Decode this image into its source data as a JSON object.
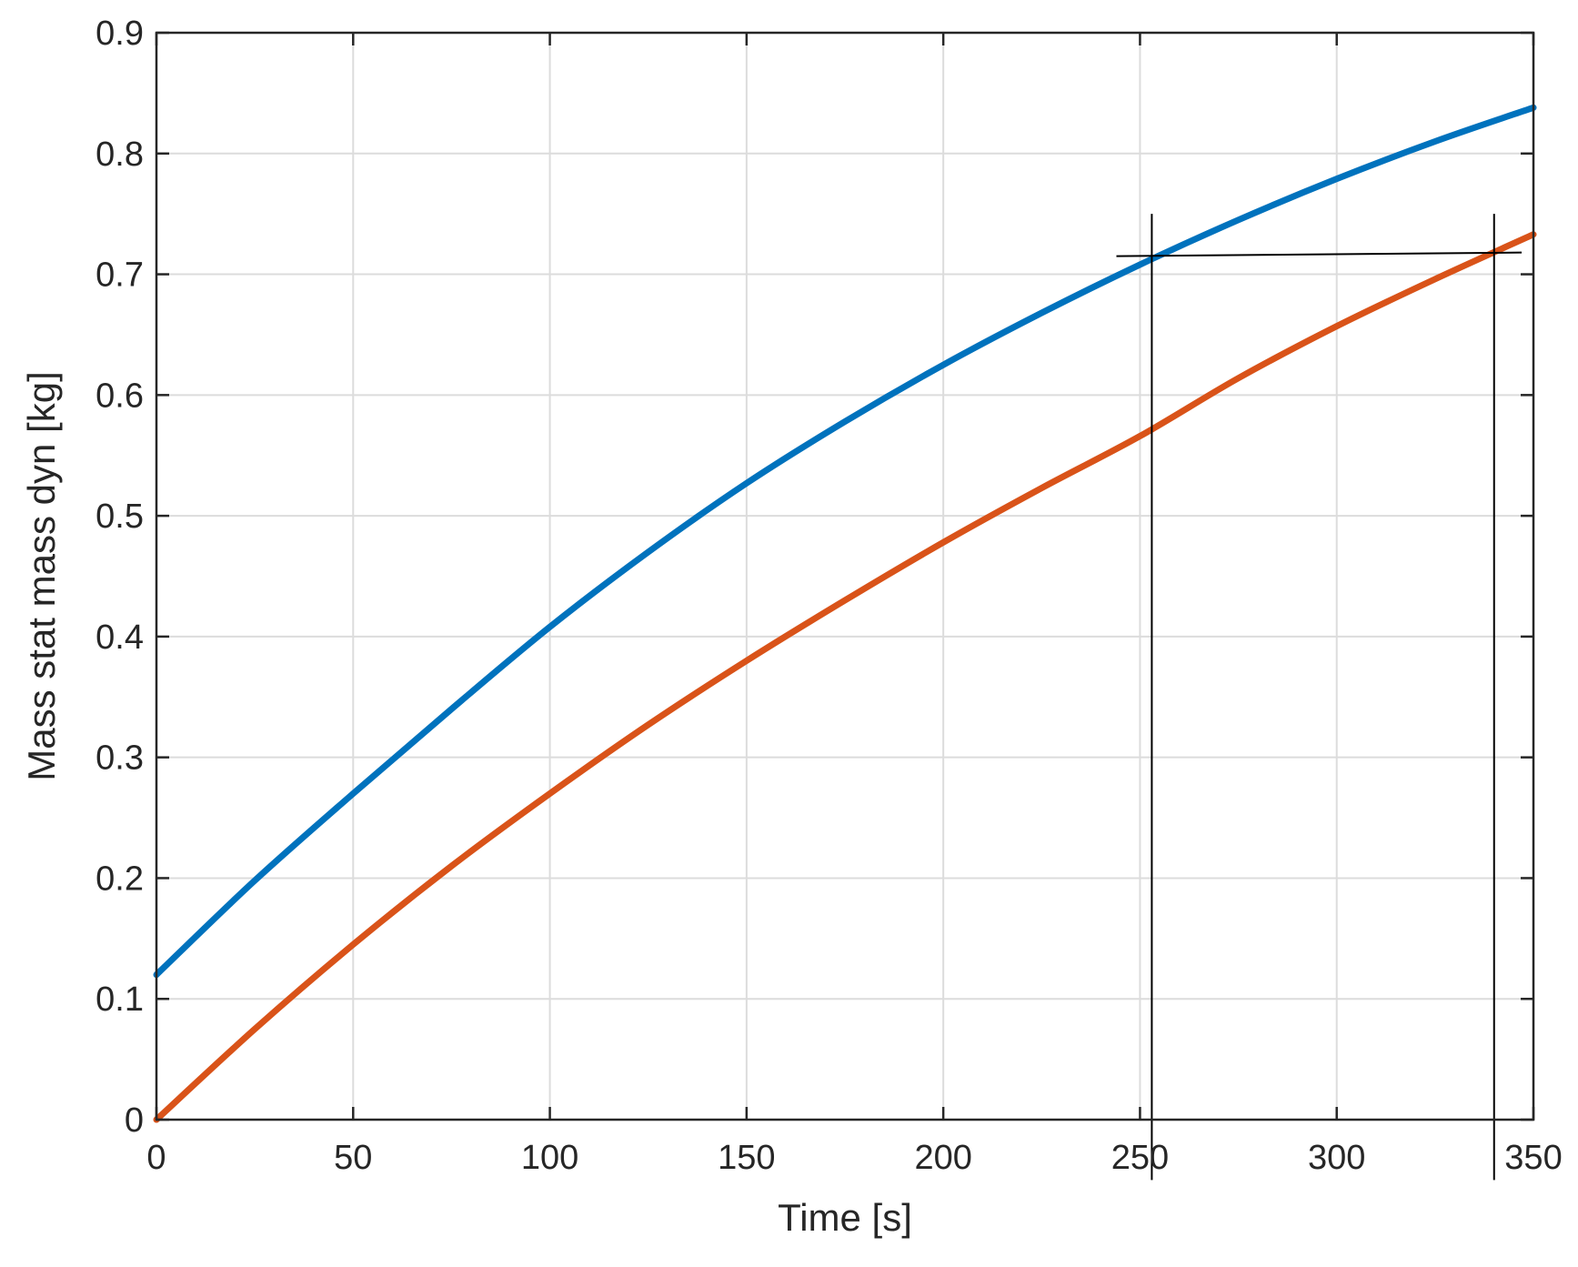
{
  "chart_data": {
    "type": "line",
    "xlabel": "Time [s]",
    "ylabel": "Mass stat mass dyn [kg]",
    "xlim": [
      0,
      350
    ],
    "ylim": [
      0,
      0.9
    ],
    "xticks": [
      0,
      50,
      100,
      150,
      200,
      250,
      300,
      350
    ],
    "yticks": [
      0,
      0.1,
      0.2,
      0.3,
      0.4,
      0.5,
      0.6,
      0.7,
      0.8,
      0.9
    ],
    "xtick_labels": [
      "0",
      "50",
      "100",
      "150",
      "200",
      "250",
      "300",
      "350"
    ],
    "ytick_labels": [
      "0",
      "0.1",
      "0.2",
      "0.3",
      "0.4",
      "0.5",
      "0.6",
      "0.7",
      "0.8",
      "0.9"
    ],
    "grid": true,
    "series": [
      {
        "color": "#0072BD",
        "x": [
          0,
          25,
          50,
          75,
          100,
          125,
          150,
          175,
          200,
          225,
          250,
          275,
          300,
          325,
          350
        ],
        "y": [
          0.12,
          0.198,
          0.27,
          0.34,
          0.408,
          0.47,
          0.527,
          0.578,
          0.625,
          0.668,
          0.708,
          0.745,
          0.779,
          0.81,
          0.838
        ]
      },
      {
        "color": "#D95319",
        "x": [
          0,
          25,
          50,
          75,
          100,
          125,
          150,
          175,
          200,
          225,
          250,
          275,
          300,
          325,
          350
        ],
        "y": [
          0.0,
          0.075,
          0.145,
          0.21,
          0.27,
          0.327,
          0.38,
          0.43,
          0.478,
          0.523,
          0.566,
          0.614,
          0.657,
          0.696,
          0.733
        ]
      }
    ],
    "annotations": [
      {
        "kind": "hline",
        "x_start": 244,
        "x_end": 347,
        "y_start": 0.715,
        "y_end": 0.718,
        "color": "#000000"
      },
      {
        "kind": "vline",
        "x": 253,
        "y_start": -0.05,
        "y_end": 0.75,
        "color": "#000000"
      },
      {
        "kind": "vline",
        "x": 340,
        "y_start": -0.05,
        "y_end": 0.75,
        "color": "#000000"
      }
    ]
  }
}
